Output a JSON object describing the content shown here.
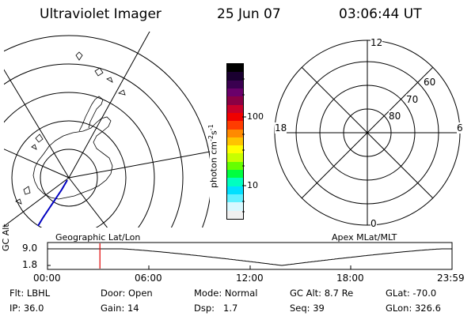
{
  "header": {
    "instrument": "Ultraviolet Imager",
    "date": "25 Jun 07",
    "time": "03:06:44 UT"
  },
  "geo_panel": {
    "label": "Geographic Lat/Lon"
  },
  "mag_panel": {
    "label": "Apex MLat/MLT",
    "mlt_labels": [
      "12",
      "18",
      "6",
      "0"
    ],
    "mlat_labels": [
      "60",
      "70",
      "80"
    ]
  },
  "colorbar": {
    "unit_label": "photon cm",
    "unit_sup1": "-2",
    "unit_s": "s",
    "unit_sup2": "-1",
    "ticks": [
      "100",
      "10"
    ],
    "colors": [
      "#000000",
      "#1a0030",
      "#3a0050",
      "#6a006a",
      "#8a0044",
      "#c8002a",
      "#f00000",
      "#ff3c00",
      "#ff8a00",
      "#ffc400",
      "#ffff00",
      "#c8ff00",
      "#66ff00",
      "#00ff40",
      "#00ffc0",
      "#00e0ff",
      "#60f0ff",
      "#d8f8ff",
      "#f0f0f0"
    ]
  },
  "orbit_plot": {
    "y_axis_label": "GC Alt",
    "y_ticks": [
      "9.0",
      "1.8"
    ],
    "x_ticks": [
      "00:00",
      "06:00",
      "12:00",
      "18:00",
      "23:59"
    ],
    "orbit_min_alt": 1.8,
    "orbit_max_alt": 9.0,
    "perigee_time_hours": 13.9,
    "current_time_hours": 3.11
  },
  "status": {
    "flt_label": "Flt:",
    "flt_value": "LBHL",
    "door_label": "Door:",
    "door_value": "Open",
    "mode_label": "Mode:",
    "mode_value": "Normal",
    "gcalt_label": "GC Alt:",
    "gcalt_value": "8.7 Re",
    "glat_label": "GLat:",
    "glat_value": "-70.0",
    "ip_label": "IP:",
    "ip_value": "36.0",
    "gain_label": "Gain:",
    "gain_value": "14",
    "dsp_label": "Dsp:",
    "dsp_value": "1.7",
    "seq_label": "Seq:",
    "seq_value": "39",
    "glon_label": "GLon:",
    "glon_value": "326.6"
  }
}
